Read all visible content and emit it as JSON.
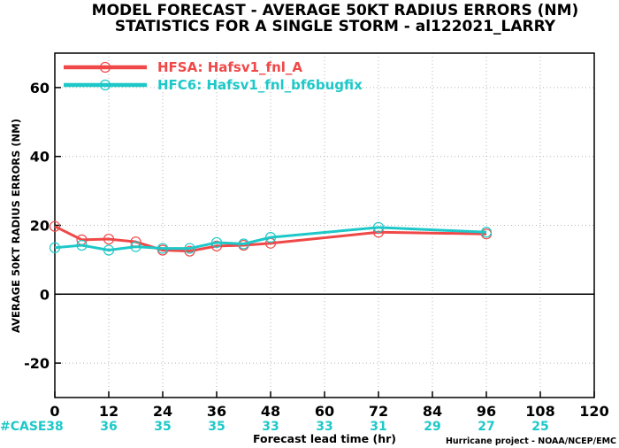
{
  "chart_data": {
    "type": "line",
    "title_line1": "MODEL FORECAST - AVERAGE 50KT RADIUS ERRORS (NM)",
    "title_line2": "STATISTICS FOR A SINGLE STORM - al122021_LARRY",
    "xlabel": "Forecast lead time (hr)",
    "ylabel": "AVERAGE 50KT RADIUS ERRORS (NM)",
    "credit": "Hurricane project - NOAA/NCEP/EMC",
    "xlim": [
      0,
      120
    ],
    "ylim": [
      -30,
      70
    ],
    "xticks": [
      0,
      12,
      24,
      36,
      48,
      60,
      72,
      84,
      96,
      108,
      120
    ],
    "yticks": [
      -20,
      0,
      20,
      40,
      60
    ],
    "grid": true,
    "legend_position": "top-left",
    "series": [
      {
        "name": "HFSA: Hafsv1_fnl_A",
        "color": "#f04848",
        "x": [
          0,
          6,
          12,
          18,
          24,
          30,
          36,
          42,
          48,
          72,
          96
        ],
        "y": [
          19.7,
          15.8,
          16.0,
          15.2,
          12.8,
          12.5,
          14.0,
          14.2,
          14.8,
          18.0,
          17.5
        ]
      },
      {
        "name": "HFC6: Hafsv1_fnl_bf6bugfix",
        "color": "#1ec8c8",
        "x": [
          0,
          6,
          12,
          18,
          24,
          30,
          36,
          42,
          48,
          72,
          96
        ],
        "y": [
          13.5,
          14.2,
          12.8,
          13.8,
          13.3,
          13.3,
          15.0,
          14.6,
          16.5,
          19.4,
          18.0
        ]
      }
    ],
    "cases": {
      "label": "#CASE",
      "color": "#1ec8c8",
      "x": [
        0,
        12,
        24,
        36,
        48,
        60,
        72,
        84,
        96,
        108
      ],
      "values": [
        "38",
        "36",
        "35",
        "35",
        "33",
        "33",
        "31",
        "29",
        "27",
        "25"
      ]
    }
  }
}
